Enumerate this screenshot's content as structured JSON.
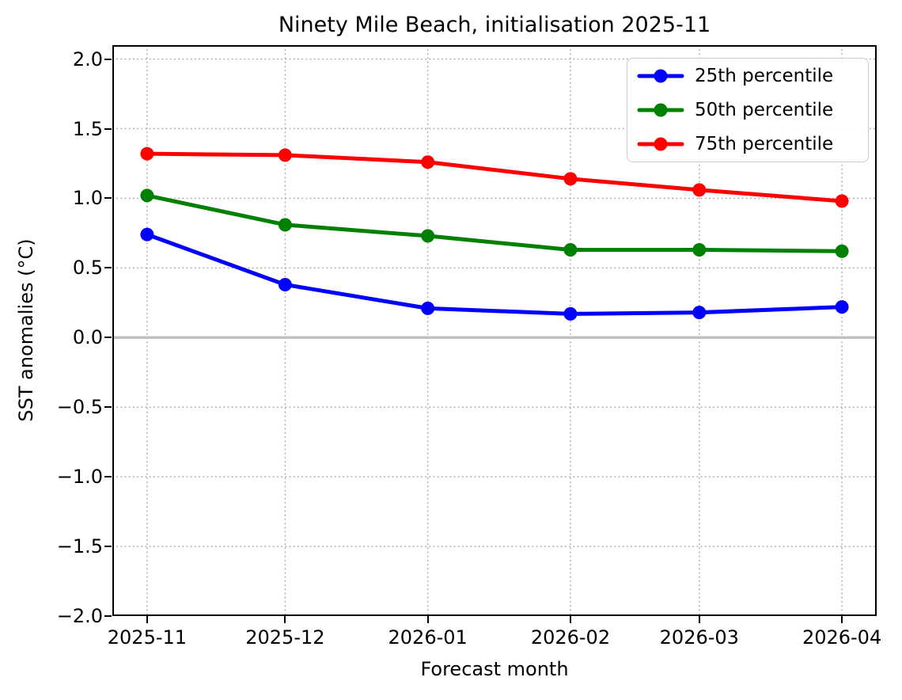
{
  "chart_data": {
    "type": "line",
    "title": "Ninety Mile Beach, initialisation 2025-11",
    "xlabel": "Forecast month",
    "ylabel": "SST anomalies (°C)",
    "ylim": [
      -2.0,
      2.1
    ],
    "grid": "dotted",
    "legend_position": "upper right",
    "background_color": "#ffffff",
    "grid_color": "#aaaaaa",
    "zero_line": {
      "value": 0.0,
      "color": "#c0c0c0"
    },
    "x_ticks": [
      {
        "label": "2025-11",
        "day": 0
      },
      {
        "label": "2025-12",
        "day": 30
      },
      {
        "label": "2026-01",
        "day": 61
      },
      {
        "label": "2026-02",
        "day": 92
      },
      {
        "label": "2026-03",
        "day": 120
      },
      {
        "label": "2026-04",
        "day": 151
      }
    ],
    "y_ticks": [
      {
        "value": 2.0,
        "label": "2.0"
      },
      {
        "value": 1.5,
        "label": "1.5"
      },
      {
        "value": 1.0,
        "label": "1.0"
      },
      {
        "value": 0.5,
        "label": "0.5"
      },
      {
        "value": 0.0,
        "label": "0.0"
      },
      {
        "value": -0.5,
        "label": "−0.5"
      },
      {
        "value": -1.0,
        "label": "−1.0"
      },
      {
        "value": -1.5,
        "label": "−1.5"
      },
      {
        "value": -2.0,
        "label": "−2.0"
      }
    ],
    "categories": [
      "2025-11",
      "2025-12",
      "2026-01",
      "2026-02",
      "2026-03",
      "2026-04"
    ],
    "series": [
      {
        "name": "25th percentile",
        "color": "#0000ff",
        "values": [
          0.74,
          0.38,
          0.21,
          0.17,
          0.18,
          0.22
        ]
      },
      {
        "name": "50th percentile",
        "color": "#008000",
        "values": [
          1.02,
          0.81,
          0.73,
          0.63,
          0.63,
          0.62
        ]
      },
      {
        "name": "75th percentile",
        "color": "#ff0000",
        "values": [
          1.32,
          1.31,
          1.26,
          1.14,
          1.06,
          0.98
        ]
      }
    ]
  }
}
